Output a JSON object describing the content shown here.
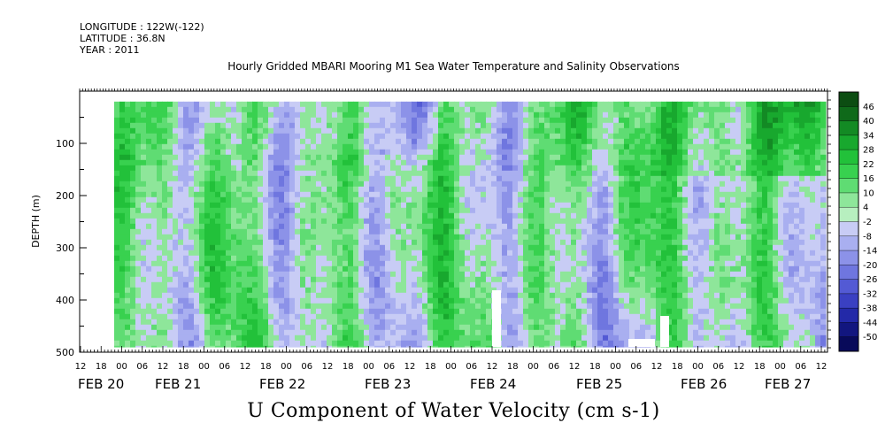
{
  "meta": {
    "longitude": "LONGITUDE : 122W(-122)",
    "latitude": "LATITUDE : 36.8N",
    "year": "YEAR : 2011"
  },
  "chart_data": {
    "type": "heatmap",
    "title": "Hourly Gridded MBARI Mooring M1 Sea Water Temperature and Salinity Observations",
    "xlabel": "U Component of Water Velocity (cm s-1)",
    "ylabel": "DEPTH (m)",
    "ylim": [
      500,
      0
    ],
    "y_ticks": [
      100,
      200,
      300,
      400,
      500
    ],
    "x_hour_ticks": [
      "12",
      "18",
      "00",
      "06",
      "12",
      "18",
      "00",
      "06",
      "12",
      "18",
      "00",
      "06",
      "12",
      "18",
      "00",
      "06",
      "12",
      "18",
      "00",
      "06",
      "12",
      "18",
      "00",
      "06",
      "12",
      "18",
      "00",
      "06",
      "12",
      "18",
      "00",
      "06",
      "12",
      "18",
      "00",
      "06",
      "12"
    ],
    "x_day_labels": [
      "FEB 20",
      "FEB 21",
      "FEB 22",
      "FEB 23",
      "FEB 24",
      "FEB 25",
      "FEB 26",
      "FEB 27"
    ],
    "data_depth_range": [
      20,
      490
    ],
    "colorbar": {
      "labels": [
        "46",
        "40",
        "34",
        "28",
        "22",
        "16",
        "10",
        "4",
        "-2",
        "-8",
        "-14",
        "-20",
        "-26",
        "-32",
        "-38",
        "-44",
        "-50"
      ],
      "colors": [
        "#0c4d12",
        "#0f6a1a",
        "#138a24",
        "#18a82e",
        "#22c13a",
        "#38d14f",
        "#5fdc73",
        "#8ee69a",
        "#b7efbf",
        "#c8ccf5",
        "#a9aff0",
        "#8c92e8",
        "#6f76df",
        "#535ad4",
        "#3a40c2",
        "#2329a8",
        "#12167f",
        "#080a5a"
      ]
    },
    "u_velocity_samples": [
      {
        "time": "FEB 20 18",
        "surface": -8,
        "mid": 10,
        "deep": 4
      },
      {
        "time": "FEB 21 06",
        "surface": -14,
        "mid": 16,
        "deep": 10
      },
      {
        "time": "FEB 22 12",
        "surface": -20,
        "mid": 4,
        "deep": -14
      },
      {
        "time": "FEB 23 06",
        "surface": -14,
        "mid": 16,
        "deep": -20
      },
      {
        "time": "FEB 24 00",
        "surface": 10,
        "mid": 10,
        "deep": -8
      },
      {
        "time": "FEB 25 00",
        "surface": 22,
        "mid": -8,
        "deep": 4
      },
      {
        "time": "FEB 26 00",
        "surface": 22,
        "mid": -2,
        "deep": -8
      },
      {
        "time": "FEB 27 06",
        "surface": 28,
        "mid": -8,
        "deep": -14
      }
    ]
  }
}
